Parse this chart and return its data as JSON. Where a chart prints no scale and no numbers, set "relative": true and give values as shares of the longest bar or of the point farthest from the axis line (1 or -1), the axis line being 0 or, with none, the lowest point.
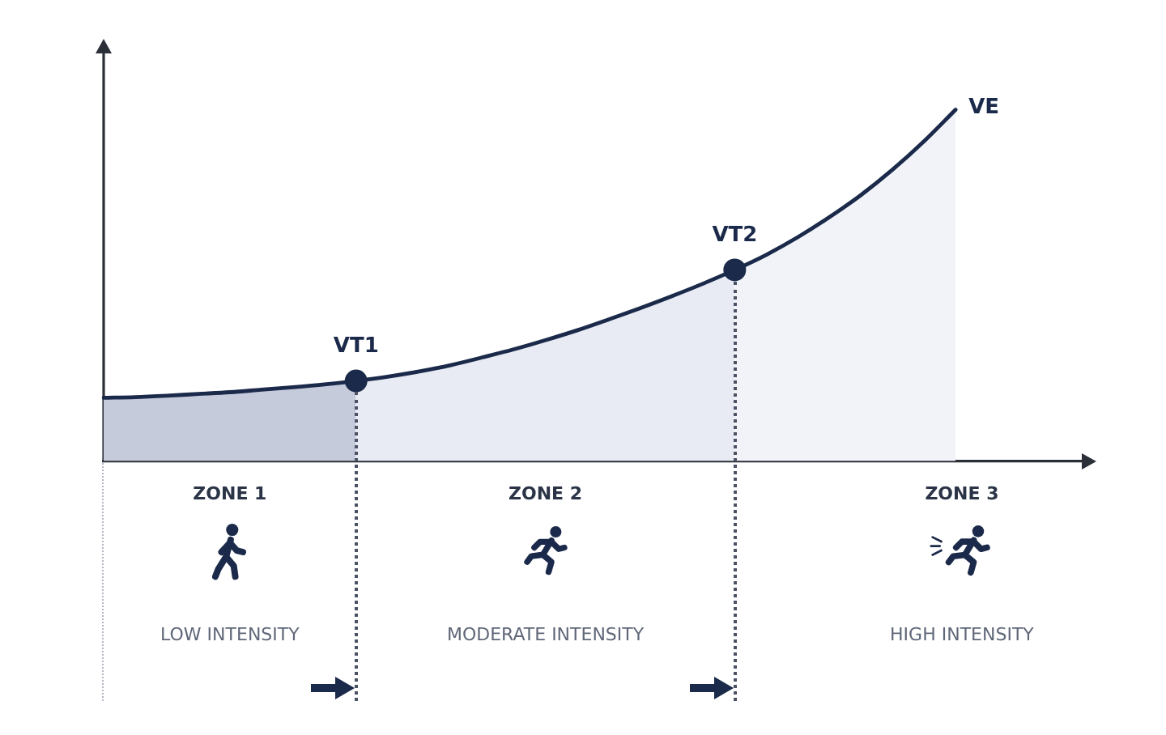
{
  "chart_data": {
    "type": "line",
    "relative": true,
    "categories": [
      null,
      null,
      null,
      null,
      null,
      null,
      null,
      null,
      null,
      null,
      null,
      null,
      null,
      null,
      null,
      null,
      null,
      null,
      null,
      null,
      null,
      null,
      null,
      null,
      null,
      null,
      null,
      null,
      null,
      null,
      null,
      null
    ],
    "series": [
      {
        "type": "area",
        "color": "#c6cbdc",
        "values": [
          0.18,
          0.182,
          0.186,
          0.191,
          0.196,
          0.203,
          0.21,
          0.218,
          0.228,
          null,
          null,
          null,
          null,
          null,
          null,
          null,
          null,
          null,
          null,
          null,
          null,
          null,
          null,
          null,
          null,
          null,
          null,
          null,
          null,
          null,
          null,
          null
        ]
      },
      {
        "type": "area",
        "color": "#e8ebf3",
        "values": [
          null,
          null,
          null,
          null,
          null,
          null,
          null,
          null,
          0.228,
          0.24,
          0.255,
          0.273,
          0.295,
          0.318,
          0.344,
          0.372,
          0.403,
          0.435,
          0.469,
          0.505,
          0.544,
          null,
          null,
          null,
          null,
          null,
          null,
          null,
          null,
          null,
          null,
          null
        ]
      },
      {
        "type": "area",
        "color": "#f1f3f8",
        "values": [
          null,
          null,
          null,
          null,
          null,
          null,
          null,
          null,
          null,
          null,
          null,
          null,
          null,
          null,
          null,
          null,
          null,
          null,
          null,
          null,
          0.544,
          0.587,
          0.637,
          0.694,
          0.757,
          0.829,
          0.91,
          1,
          null,
          null,
          null,
          null
        ]
      },
      {
        "name": "VE",
        "color": "#1b2a4a",
        "values": [
          0.18,
          0.182,
          0.186,
          0.191,
          0.196,
          0.203,
          0.21,
          0.218,
          0.228,
          0.24,
          0.255,
          0.273,
          0.295,
          0.318,
          0.344,
          0.372,
          0.403,
          0.435,
          0.469,
          0.505,
          0.544,
          0.587,
          0.637,
          0.694,
          0.757,
          0.829,
          0.91,
          1,
          null,
          null,
          null,
          null
        ]
      },
      {
        "color": "#1b2a4a",
        "marker": "circle",
        "values": [
          null,
          null,
          null,
          null,
          null,
          null,
          null,
          null,
          0.228,
          null,
          null,
          null,
          null,
          null,
          null,
          null,
          null,
          null,
          null,
          null,
          null,
          null,
          null,
          null,
          null,
          null,
          null,
          null,
          null,
          null,
          null,
          null
        ]
      },
      {
        "color": "#1b2a4a",
        "marker": "circle",
        "values": [
          null,
          null,
          null,
          null,
          null,
          null,
          null,
          null,
          null,
          null,
          null,
          null,
          null,
          null,
          null,
          null,
          null,
          null,
          null,
          null,
          0.544,
          null,
          null,
          null,
          null,
          null,
          null,
          null,
          null,
          null,
          null,
          null
        ]
      }
    ],
    "annotations": [
      "VT1",
      "VT2",
      "ZONE 1",
      "LOW INTENSITY",
      "ZONE 2",
      "MODERATE INTENSITY",
      "ZONE 3",
      "HIGH INTENSITY"
    ]
  }
}
